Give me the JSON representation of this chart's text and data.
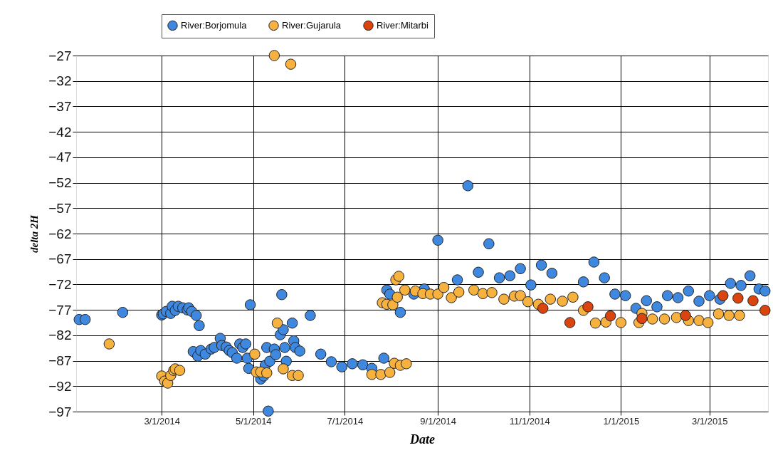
{
  "chart_data": {
    "type": "scatter",
    "xlabel": "Date",
    "ylabel": "delta 2H",
    "xlim": [
      "2014-01-03",
      "2015-04-09"
    ],
    "ylim": [
      -97,
      -27
    ],
    "xticks": [
      {
        "value": "2014-03-01",
        "label": "3/1/2014"
      },
      {
        "value": "2014-05-01",
        "label": "5/1/2014"
      },
      {
        "value": "2014-07-01",
        "label": "7/1/2014"
      },
      {
        "value": "2014-09-01",
        "label": "9/1/2014"
      },
      {
        "value": "2014-11-01",
        "label": "11/1/2014"
      },
      {
        "value": "2015-01-01",
        "label": "1/1/2015"
      },
      {
        "value": "2015-03-01",
        "label": "3/1/2015"
      }
    ],
    "yticks": [
      -27,
      -32,
      -37,
      -42,
      -47,
      -52,
      -57,
      -62,
      -67,
      -72,
      -77,
      -82,
      -87,
      -92,
      -97
    ],
    "grid": true,
    "legend": "top",
    "marker": "circle",
    "series": [
      {
        "name": "River:Borjomula",
        "color": "#3f88e0",
        "x": [
          "2014-01-05",
          "2014-01-09",
          "2014-02-03",
          "2014-03-01",
          "2014-03-02",
          "2014-03-04",
          "2014-03-07",
          "2014-03-08",
          "2014-03-10",
          "2014-03-12",
          "2014-03-15",
          "2014-03-18",
          "2014-03-19",
          "2014-03-21",
          "2014-03-24",
          "2014-03-26",
          "2014-03-22",
          "2014-03-25",
          "2014-03-27",
          "2014-03-30",
          "2014-04-03",
          "2014-04-05",
          "2014-04-09",
          "2014-04-10",
          "2014-04-13",
          "2014-04-15",
          "2014-04-17",
          "2014-04-20",
          "2014-04-22",
          "2014-04-24",
          "2014-04-26",
          "2014-04-27",
          "2014-04-28",
          "2014-04-29",
          "2014-05-06",
          "2014-05-08",
          "2014-05-09",
          "2014-05-11",
          "2014-05-10",
          "2014-05-12",
          "2014-05-15",
          "2014-05-16",
          "2014-05-20",
          "2014-05-19",
          "2014-05-21",
          "2014-05-22",
          "2014-05-23",
          "2014-05-27",
          "2014-05-28",
          "2014-05-29",
          "2014-06-01",
          "2014-06-08",
          "2014-06-15",
          "2014-06-22",
          "2014-06-29",
          "2014-07-06",
          "2014-07-13",
          "2014-07-19",
          "2014-07-27",
          "2014-07-29",
          "2014-07-31",
          "2014-08-07",
          "2014-08-16",
          "2014-08-23",
          "2014-09-01",
          "2014-09-14",
          "2014-09-21",
          "2014-09-28",
          "2014-10-05",
          "2014-10-12",
          "2014-10-19",
          "2014-10-26",
          "2014-11-02",
          "2014-11-09",
          "2014-11-16",
          "2014-12-07",
          "2014-12-14",
          "2014-12-21",
          "2014-12-28",
          "2015-01-04",
          "2015-01-11",
          "2015-01-18",
          "2015-01-25",
          "2015-02-01",
          "2015-02-08",
          "2015-02-15",
          "2015-02-22",
          "2015-03-01",
          "2015-03-08",
          "2015-03-15",
          "2015-03-22",
          "2015-03-28",
          "2015-04-03",
          "2015-04-07"
        ],
        "values": [
          -78.9,
          -78.9,
          -77.5,
          -78.0,
          -77.8,
          -77.3,
          -77.7,
          -76.3,
          -77.1,
          -76.3,
          -76.6,
          -77.0,
          -76.6,
          -77.3,
          -78.1,
          -80.1,
          -85.2,
          -86.1,
          -85.0,
          -85.7,
          -84.7,
          -84.4,
          -82.6,
          -84.0,
          -84.3,
          -85.0,
          -85.4,
          -86.5,
          -83.7,
          -84.4,
          -83.7,
          -86.5,
          -88.5,
          -76.0,
          -90.6,
          -90.0,
          -87.9,
          -96.9,
          -84.4,
          -87.1,
          -84.7,
          -85.8,
          -74.0,
          -81.9,
          -80.9,
          -84.4,
          -87.1,
          -79.6,
          -83.1,
          -84.4,
          -85.1,
          -78.1,
          -85.7,
          -87.2,
          -88.2,
          -87.6,
          -87.8,
          -88.5,
          -86.5,
          -73.1,
          -73.9,
          -77.5,
          -73.9,
          -72.9,
          -63.3,
          -71.1,
          -52.6,
          -69.6,
          -64.0,
          -70.7,
          -70.3,
          -68.9,
          -72.1,
          -68.2,
          -69.8,
          -71.5,
          -67.6,
          -70.7,
          -73.9,
          -74.2,
          -76.7,
          -75.2,
          -76.4,
          -74.2,
          -74.6,
          -73.3,
          -75.3,
          -74.2,
          -74.9,
          -71.8,
          -72.2,
          -70.3,
          -72.9,
          -73.3
        ]
      },
      {
        "name": "River:Gujarula",
        "color": "#f6b13f",
        "x": [
          "2014-01-25",
          "2014-03-01",
          "2014-03-03",
          "2014-03-05",
          "2014-03-07",
          "2014-03-09",
          "2014-03-10",
          "2014-03-13",
          "2014-05-02",
          "2014-05-03",
          "2014-05-06",
          "2014-05-10",
          "2014-05-15",
          "2014-05-26",
          "2014-05-17",
          "2014-05-21",
          "2014-05-27",
          "2014-05-31",
          "2014-07-19",
          "2014-07-25",
          "2014-07-31",
          "2014-08-03",
          "2014-08-07",
          "2014-08-11",
          "2014-07-26",
          "2014-07-29",
          "2014-08-02",
          "2014-08-04",
          "2014-08-06",
          "2014-08-05",
          "2014-08-10",
          "2014-08-17",
          "2014-08-22",
          "2014-08-27",
          "2014-09-01",
          "2014-09-05",
          "2014-09-10",
          "2014-09-15",
          "2014-09-25",
          "2014-10-01",
          "2014-10-07",
          "2014-10-15",
          "2014-10-22",
          "2014-10-26",
          "2014-10-31",
          "2014-11-07",
          "2014-11-15",
          "2014-11-23",
          "2014-11-30",
          "2014-12-07",
          "2014-12-15",
          "2014-12-22",
          "2015-01-01",
          "2015-01-13",
          "2015-01-15",
          "2015-01-22",
          "2015-01-30",
          "2015-02-07",
          "2015-02-15",
          "2015-02-22",
          "2015-02-28",
          "2015-03-07",
          "2015-03-14",
          "2015-03-21"
        ],
        "values": [
          -83.7,
          -90.0,
          -91.0,
          -91.4,
          -89.9,
          -88.9,
          -88.6,
          -88.9,
          -85.7,
          -89.2,
          -89.2,
          -89.4,
          -27.0,
          -28.7,
          -79.6,
          -88.6,
          -89.9,
          -89.9,
          -89.7,
          -89.7,
          -89.3,
          -87.5,
          -87.9,
          -87.6,
          -75.6,
          -75.9,
          -76.0,
          -71.1,
          -70.4,
          -74.5,
          -73.1,
          -73.3,
          -73.8,
          -73.9,
          -73.9,
          -72.6,
          -74.6,
          -73.5,
          -73.1,
          -73.8,
          -73.6,
          -74.9,
          -74.3,
          -74.2,
          -75.4,
          -75.9,
          -74.9,
          -75.3,
          -74.5,
          -77.1,
          -79.6,
          -79.4,
          -79.5,
          -79.5,
          -77.7,
          -78.8,
          -78.8,
          -78.5,
          -79.1,
          -79.1,
          -79.5,
          -77.8,
          -78.1,
          -78.1
        ]
      },
      {
        "name": "River:Mitarbi",
        "color": "#d9440f",
        "x": [
          "2014-11-10",
          "2014-11-28",
          "2014-12-10",
          "2014-12-25",
          "2015-01-15",
          "2015-02-13",
          "2015-03-10",
          "2015-03-20",
          "2015-03-30",
          "2015-04-07"
        ],
        "values": [
          -76.7,
          -79.5,
          -76.4,
          -78.2,
          -78.7,
          -78.1,
          -74.2,
          -74.7,
          -75.2,
          -77.1
        ]
      }
    ]
  }
}
